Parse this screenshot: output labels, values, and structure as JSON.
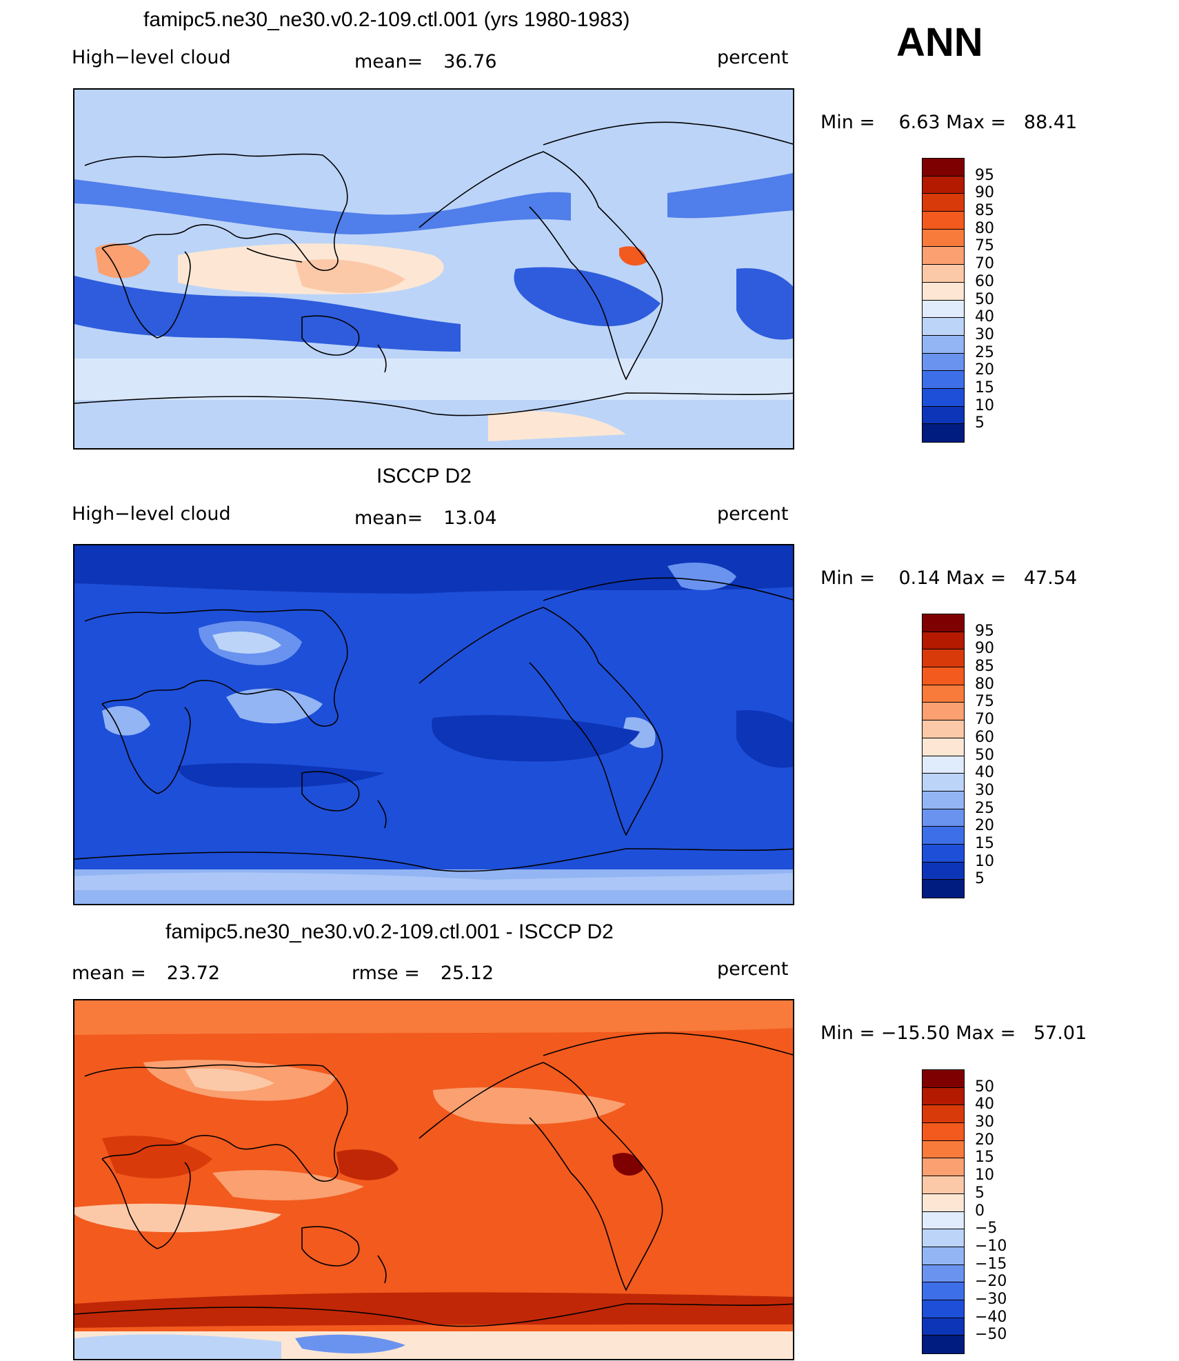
{
  "season": "ANN",
  "panels": [
    {
      "title": "famipc5.ne30_ne30.v0.2-109.ctl.001 (yrs 1980-1983)",
      "left_label": "High−level cloud",
      "center_label": "mean=",
      "center_value": "36.76",
      "units": "percent",
      "minmax": "Min =    6.63 Max =   88.41",
      "scheme": "model"
    },
    {
      "title": "ISCCP D2",
      "left_label": "High−level cloud",
      "center_label": "mean=",
      "center_value": "13.04",
      "units": "percent",
      "minmax": "Min =    0.14 Max =   47.54",
      "scheme": "obs"
    },
    {
      "title": "famipc5.ne30_ne30.v0.2-109.ctl.001 - ISCCP D2",
      "left_label": "mean =",
      "left_value": "23.72",
      "center_label": "rmse =",
      "center_value": "25.12",
      "units": "percent",
      "minmax": "Min = −15.50 Max =   57.01",
      "scheme": "diff"
    }
  ],
  "colorbars": [
    {
      "levels": [
        "95",
        "90",
        "85",
        "80",
        "75",
        "70",
        "60",
        "50",
        "40",
        "30",
        "25",
        "20",
        "15",
        "10",
        "5"
      ],
      "colors": [
        "#7f0000",
        "#b31a00",
        "#d93a0a",
        "#f25a1e",
        "#f87b3c",
        "#faa071",
        "#fcc9a8",
        "#fde7d4",
        "#e0ebfb",
        "#bcd4f8",
        "#93b5f4",
        "#6a93ef",
        "#3d6fe8",
        "#1e4fd8",
        "#0d35b8",
        "#001c80"
      ]
    },
    {
      "levels": [
        "95",
        "90",
        "85",
        "80",
        "75",
        "70",
        "60",
        "50",
        "40",
        "30",
        "25",
        "20",
        "15",
        "10",
        "5"
      ],
      "colors": [
        "#7f0000",
        "#b31a00",
        "#d93a0a",
        "#f25a1e",
        "#f87b3c",
        "#faa071",
        "#fcc9a8",
        "#fde7d4",
        "#e0ebfb",
        "#bcd4f8",
        "#93b5f4",
        "#6a93ef",
        "#3d6fe8",
        "#1e4fd8",
        "#0d35b8",
        "#001c80"
      ]
    },
    {
      "levels": [
        "50",
        "40",
        "30",
        "20",
        "15",
        "10",
        "5",
        "0",
        "−5",
        "−10",
        "−15",
        "−20",
        "−30",
        "−40",
        "−50"
      ],
      "colors": [
        "#7f0000",
        "#b31a00",
        "#d93a0a",
        "#f25a1e",
        "#f87b3c",
        "#faa071",
        "#fcc9a8",
        "#fde7d4",
        "#e0ebfb",
        "#bcd4f8",
        "#93b5f4",
        "#6a93ef",
        "#3d6fe8",
        "#1e4fd8",
        "#0d35b8",
        "#001c80"
      ]
    }
  ]
}
